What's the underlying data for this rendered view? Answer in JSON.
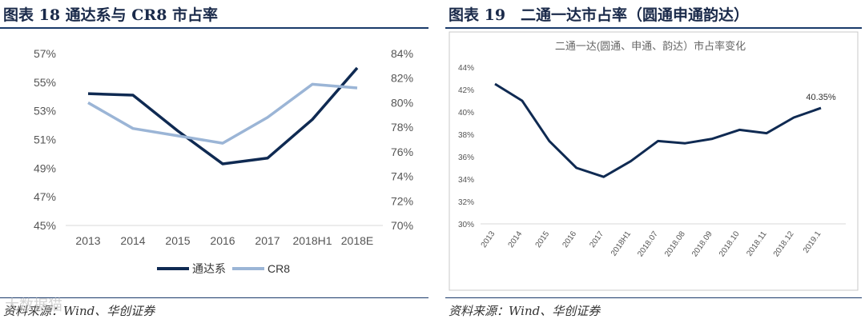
{
  "left": {
    "figure_title": "图表 18 通达系与 CR8 市占率",
    "source": "资料来源：Wind、华创证券"
  },
  "right": {
    "figure_title": "图表 19　二通一达市占率（圆通申通韵达）",
    "source": "资料来源：Wind、华创证券"
  },
  "watermark": "大数据猫",
  "colors": {
    "series_dark": "#0f2a52",
    "series_light": "#9bb5d6",
    "rule": "#1a3a6a"
  },
  "chart_data": [
    {
      "type": "line",
      "title": "",
      "categories": [
        "2013",
        "2014",
        "2015",
        "2016",
        "2017",
        "2018H1",
        "2018E"
      ],
      "y_left_ticks": [
        "57%",
        "55%",
        "53%",
        "51%",
        "49%",
        "47%",
        "45%"
      ],
      "y_right_ticks": [
        "84%",
        "82%",
        "80%",
        "78%",
        "76%",
        "74%",
        "72%",
        "70%"
      ],
      "ylim_left": [
        45,
        57
      ],
      "ylim_right": [
        70,
        84
      ],
      "grid": false,
      "legend": "bottom",
      "series": [
        {
          "name": "通达系",
          "axis": "left",
          "color": "#0f2a52",
          "values": [
            54.2,
            54.1,
            51.6,
            49.3,
            49.7,
            52.4,
            56.0
          ]
        },
        {
          "name": "CR8",
          "axis": "right",
          "color": "#9bb5d6",
          "values": [
            80.0,
            77.9,
            77.3,
            76.7,
            78.8,
            81.5,
            81.2
          ]
        }
      ]
    },
    {
      "type": "line",
      "title": "二通一达(圆通、申通、韵达）市占率变化",
      "categories": [
        "2013",
        "2014",
        "2015",
        "2016",
        "2017",
        "2018H1",
        "2018.07",
        "2018.08",
        "2018.09",
        "2018.10",
        "2018.11",
        "2018.12",
        "2019.1"
      ],
      "y_ticks": [
        "44%",
        "42%",
        "40%",
        "38%",
        "36%",
        "34%",
        "32%",
        "30%"
      ],
      "ylim": [
        30,
        44
      ],
      "grid": false,
      "legend": "none",
      "annotation": "40.35%",
      "series": [
        {
          "color": "#0f2a52",
          "values": [
            42.5,
            41.0,
            37.4,
            35.0,
            34.2,
            35.6,
            37.4,
            37.2,
            37.6,
            38.4,
            38.1,
            39.5,
            40.35
          ]
        }
      ]
    }
  ]
}
